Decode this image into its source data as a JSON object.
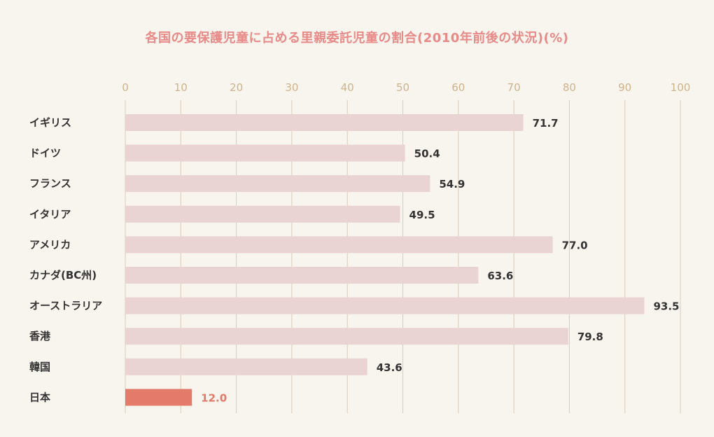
{
  "title": "各国の要保護児童に占める里親委託児童の割合(2010年前後の状況)(%)",
  "colors": {
    "background": "#f8f4ee",
    "title": "#e88a87",
    "bar": "#ead4d3",
    "highlight_bar": "#e47a6a",
    "highlight_text": "#e07a6a",
    "grid": "#d9ccb7",
    "tick_text": "#cdb38a",
    "label_text": "#333333"
  },
  "chart_data": {
    "type": "bar",
    "orientation": "horizontal",
    "title": "各国の要保護児童に占める里親委託児童の割合(2010年前後の状況)(%)",
    "xlabel": "",
    "ylabel": "",
    "xlim": [
      0,
      100
    ],
    "ticks": [
      0,
      10,
      20,
      30,
      40,
      50,
      60,
      70,
      80,
      90,
      100
    ],
    "tick_labels": [
      "0",
      "10",
      "20",
      "30",
      "40",
      "50",
      "60",
      "70",
      "80",
      "90",
      "100"
    ],
    "categories": [
      "イギリス",
      "ドイツ",
      "フランス",
      "イタリア",
      "アメリカ",
      "カナダ(BC州)",
      "オーストラリア",
      "香港",
      "韓国",
      "日本"
    ],
    "values": [
      71.7,
      50.4,
      54.9,
      49.5,
      77.0,
      63.6,
      93.5,
      79.8,
      43.6,
      12.0
    ],
    "value_labels": [
      "71.7",
      "50.4",
      "54.9",
      "49.5",
      "77.0",
      "63.6",
      "93.5",
      "79.8",
      "43.6",
      "12.0"
    ],
    "highlight": "日本",
    "grid": true,
    "tick_position": "top",
    "legend": "none"
  }
}
